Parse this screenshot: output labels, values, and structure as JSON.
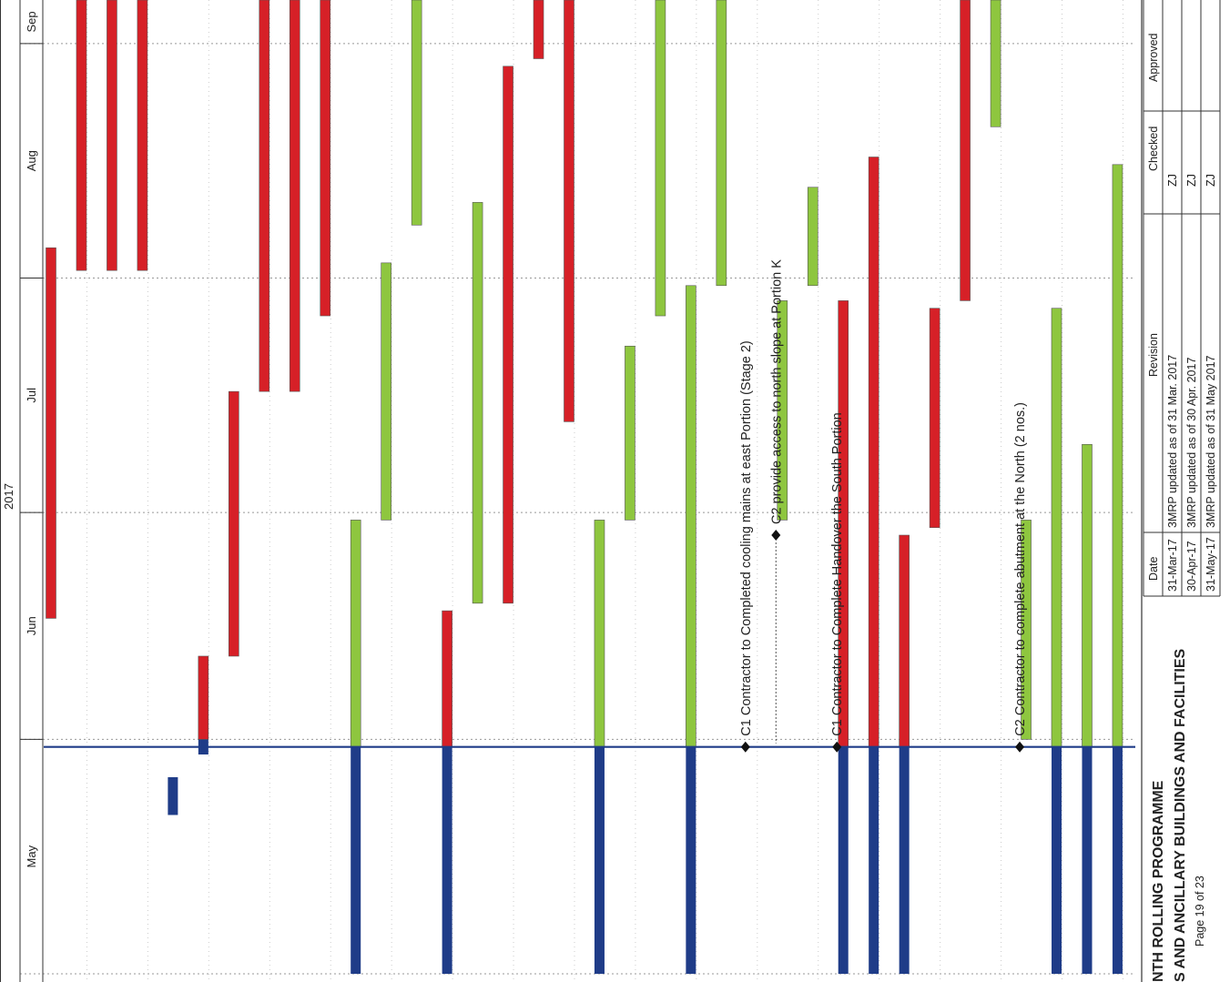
{
  "header": {
    "year": "2017",
    "months": [
      {
        "label": "May",
        "start_day": 0,
        "end_day": 31
      },
      {
        "label": "Jun",
        "start_day": 31,
        "end_day": 61
      },
      {
        "label": "Jul",
        "start_day": 61,
        "end_day": 92
      },
      {
        "label": "Aug",
        "start_day": 92,
        "end_day": 123
      },
      {
        "label": "Sep",
        "start_day": 123,
        "end_day": 153
      }
    ]
  },
  "status_date": "31-May-17",
  "colors": {
    "critical": "#d62027",
    "noncritical": "#8ec63f",
    "progress": "#1f3c88",
    "status_line": "#1f3c88",
    "grid": "#cccccc"
  },
  "chart_data": {
    "type": "gantt",
    "time_axis": {
      "units": "days from 1-May-2017",
      "min": -2,
      "max": 128
    },
    "bars": [
      {
        "row": 0,
        "type": "critical",
        "start": 47,
        "end": 96
      },
      {
        "row": 1,
        "type": "critical",
        "start": 93,
        "end": 130
      },
      {
        "row": 2,
        "type": "critical",
        "start": 93,
        "end": 130
      },
      {
        "row": 3,
        "type": "critical",
        "start": 93,
        "end": 130
      },
      {
        "row": 4,
        "type": "progress",
        "start": 21,
        "end": 26
      },
      {
        "row": 5,
        "type": "progress",
        "start": 29,
        "end": 31
      },
      {
        "row": 5,
        "type": "critical",
        "start": 31,
        "end": 42
      },
      {
        "row": 6,
        "type": "critical",
        "start": 42,
        "end": 77
      },
      {
        "row": 7,
        "type": "critical",
        "start": 77,
        "end": 130
      },
      {
        "row": 8,
        "type": "critical",
        "start": 77,
        "end": 130
      },
      {
        "row": 9,
        "type": "critical",
        "start": 87,
        "end": 130
      },
      {
        "row": 10,
        "type": "progress",
        "start": 0,
        "end": 30
      },
      {
        "row": 10,
        "type": "noncritical",
        "start": 30,
        "end": 60
      },
      {
        "row": 11,
        "type": "noncritical",
        "start": 60,
        "end": 94
      },
      {
        "row": 12,
        "type": "noncritical",
        "start": 99,
        "end": 130
      },
      {
        "row": 13,
        "type": "progress",
        "start": 0,
        "end": 30
      },
      {
        "row": 13,
        "type": "critical",
        "start": 30,
        "end": 48
      },
      {
        "row": 14,
        "type": "noncritical",
        "start": 49,
        "end": 102
      },
      {
        "row": 15,
        "type": "critical",
        "start": 49,
        "end": 120
      },
      {
        "row": 16,
        "type": "critical",
        "start": 121,
        "end": 130
      },
      {
        "row": 17,
        "type": "critical",
        "start": 73,
        "end": 130
      },
      {
        "row": 18,
        "type": "progress",
        "start": 0,
        "end": 30
      },
      {
        "row": 18,
        "type": "noncritical",
        "start": 30,
        "end": 60
      },
      {
        "row": 19,
        "type": "noncritical",
        "start": 60,
        "end": 83
      },
      {
        "row": 20,
        "type": "noncritical",
        "start": 87,
        "end": 130
      },
      {
        "row": 21,
        "type": "progress",
        "start": 0,
        "end": 30
      },
      {
        "row": 21,
        "type": "noncritical",
        "start": 30,
        "end": 91
      },
      {
        "row": 22,
        "type": "noncritical",
        "start": 91,
        "end": 130
      },
      {
        "row": 24,
        "type": "noncritical",
        "start": 60,
        "end": 89
      },
      {
        "row": 25,
        "type": "noncritical",
        "start": 91,
        "end": 104
      },
      {
        "row": 26,
        "type": "progress",
        "start": 0,
        "end": 30
      },
      {
        "row": 26,
        "type": "critical",
        "start": 30,
        "end": 89
      },
      {
        "row": 27,
        "type": "progress",
        "start": 0,
        "end": 30
      },
      {
        "row": 27,
        "type": "critical",
        "start": 30,
        "end": 108
      },
      {
        "row": 28,
        "type": "progress",
        "start": 0,
        "end": 30
      },
      {
        "row": 28,
        "type": "critical",
        "start": 30,
        "end": 58
      },
      {
        "row": 29,
        "type": "critical",
        "start": 59,
        "end": 88
      },
      {
        "row": 30,
        "type": "critical",
        "start": 89,
        "end": 130
      },
      {
        "row": 31,
        "type": "noncritical",
        "start": 112,
        "end": 130
      },
      {
        "row": 32,
        "type": "noncritical",
        "start": 31,
        "end": 60
      },
      {
        "row": 33,
        "type": "progress",
        "start": 0,
        "end": 30
      },
      {
        "row": 33,
        "type": "noncritical",
        "start": 30,
        "end": 88
      },
      {
        "row": 34,
        "type": "progress",
        "start": 0,
        "end": 30
      },
      {
        "row": 34,
        "type": "noncritical",
        "start": 30,
        "end": 70
      },
      {
        "row": 35,
        "type": "progress",
        "start": 0,
        "end": 30
      },
      {
        "row": 35,
        "type": "noncritical",
        "start": 30,
        "end": 107
      }
    ],
    "milestones": [
      {
        "row": 23,
        "day": 30,
        "label": "C1 Contractor to Completed cooling mains at east Portion (Stage 2)"
      },
      {
        "row": 24,
        "day": 58,
        "label": "C2 provide access to north slope at Portion K"
      },
      {
        "row": 26,
        "day": 30,
        "label": "C1 Contractor to Complete Handover the South Portion"
      },
      {
        "row": 32,
        "day": 30,
        "label": "C2 Contractor to complete abutment at the North (2 nos.)"
      }
    ]
  },
  "title_block": {
    "title_line1": "NTH ROLLING PROGRAMME",
    "title_line2": "S AND ANCILLARY BUILDINGS AND FACILITIES",
    "page": "Page 19 of 23"
  },
  "revision_table": {
    "headers": {
      "date": "Date",
      "revision": "Revision",
      "checked": "Checked",
      "approved": "Approved"
    },
    "rows": [
      {
        "date": "31-Mar-17",
        "revision": "3MRP updated as of 31 Mar. 2017",
        "checked": "ZJ",
        "approved": ""
      },
      {
        "date": "30-Apr-17",
        "revision": "3MRP updated as of 30 Apr. 2017",
        "checked": "ZJ",
        "approved": ""
      },
      {
        "date": "31-May-17",
        "revision": "3MRP updated as of 31 May 2017",
        "checked": "ZJ",
        "approved": ""
      }
    ]
  }
}
